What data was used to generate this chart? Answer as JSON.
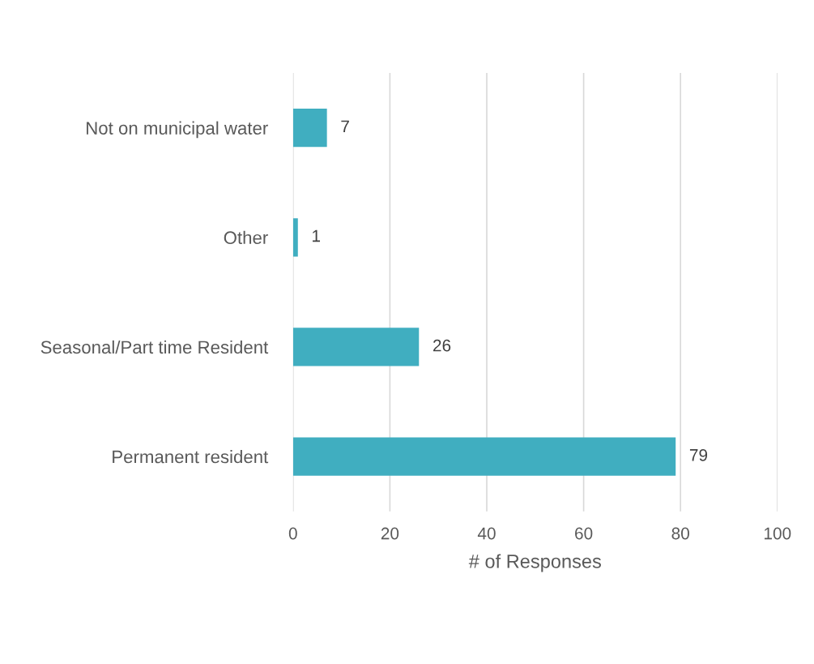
{
  "chart_data": {
    "type": "bar",
    "orientation": "horizontal",
    "xlabel": "# of Responses",
    "categories": [
      "Not on municipal water",
      "Other",
      "Seasonal/Part time Resident",
      "Permanent resident"
    ],
    "values": [
      7,
      1,
      26,
      79
    ],
    "color": "#40aec0",
    "xlim": [
      0,
      100
    ],
    "xticks": [
      0,
      20,
      40,
      60,
      80,
      100
    ],
    "grid": "x",
    "data_labels": true
  }
}
